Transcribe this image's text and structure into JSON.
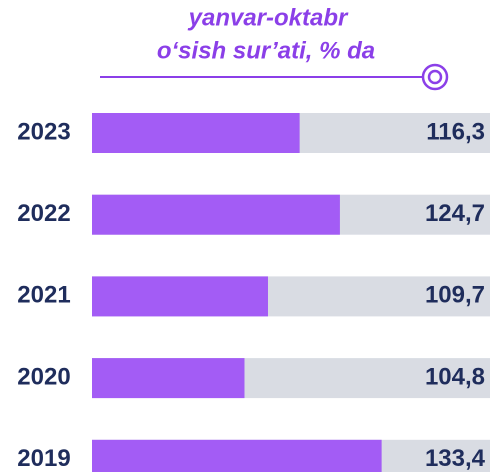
{
  "chart_data": {
    "type": "bar",
    "orientation": "horizontal",
    "title": [
      "yanvar-oktabr",
      "o‘sish sur’ati, % da"
    ],
    "categories": [
      "2023",
      "2022",
      "2021",
      "2020",
      "2019"
    ],
    "values": [
      116.3,
      124.7,
      109.7,
      104.8,
      133.4
    ],
    "value_labels": [
      "116,3",
      "124,7",
      "109,7",
      "104,8",
      "133,4"
    ],
    "color": "#a35cf5",
    "track_color": "#d9dce3",
    "xlim": [
      73,
      156
    ]
  }
}
